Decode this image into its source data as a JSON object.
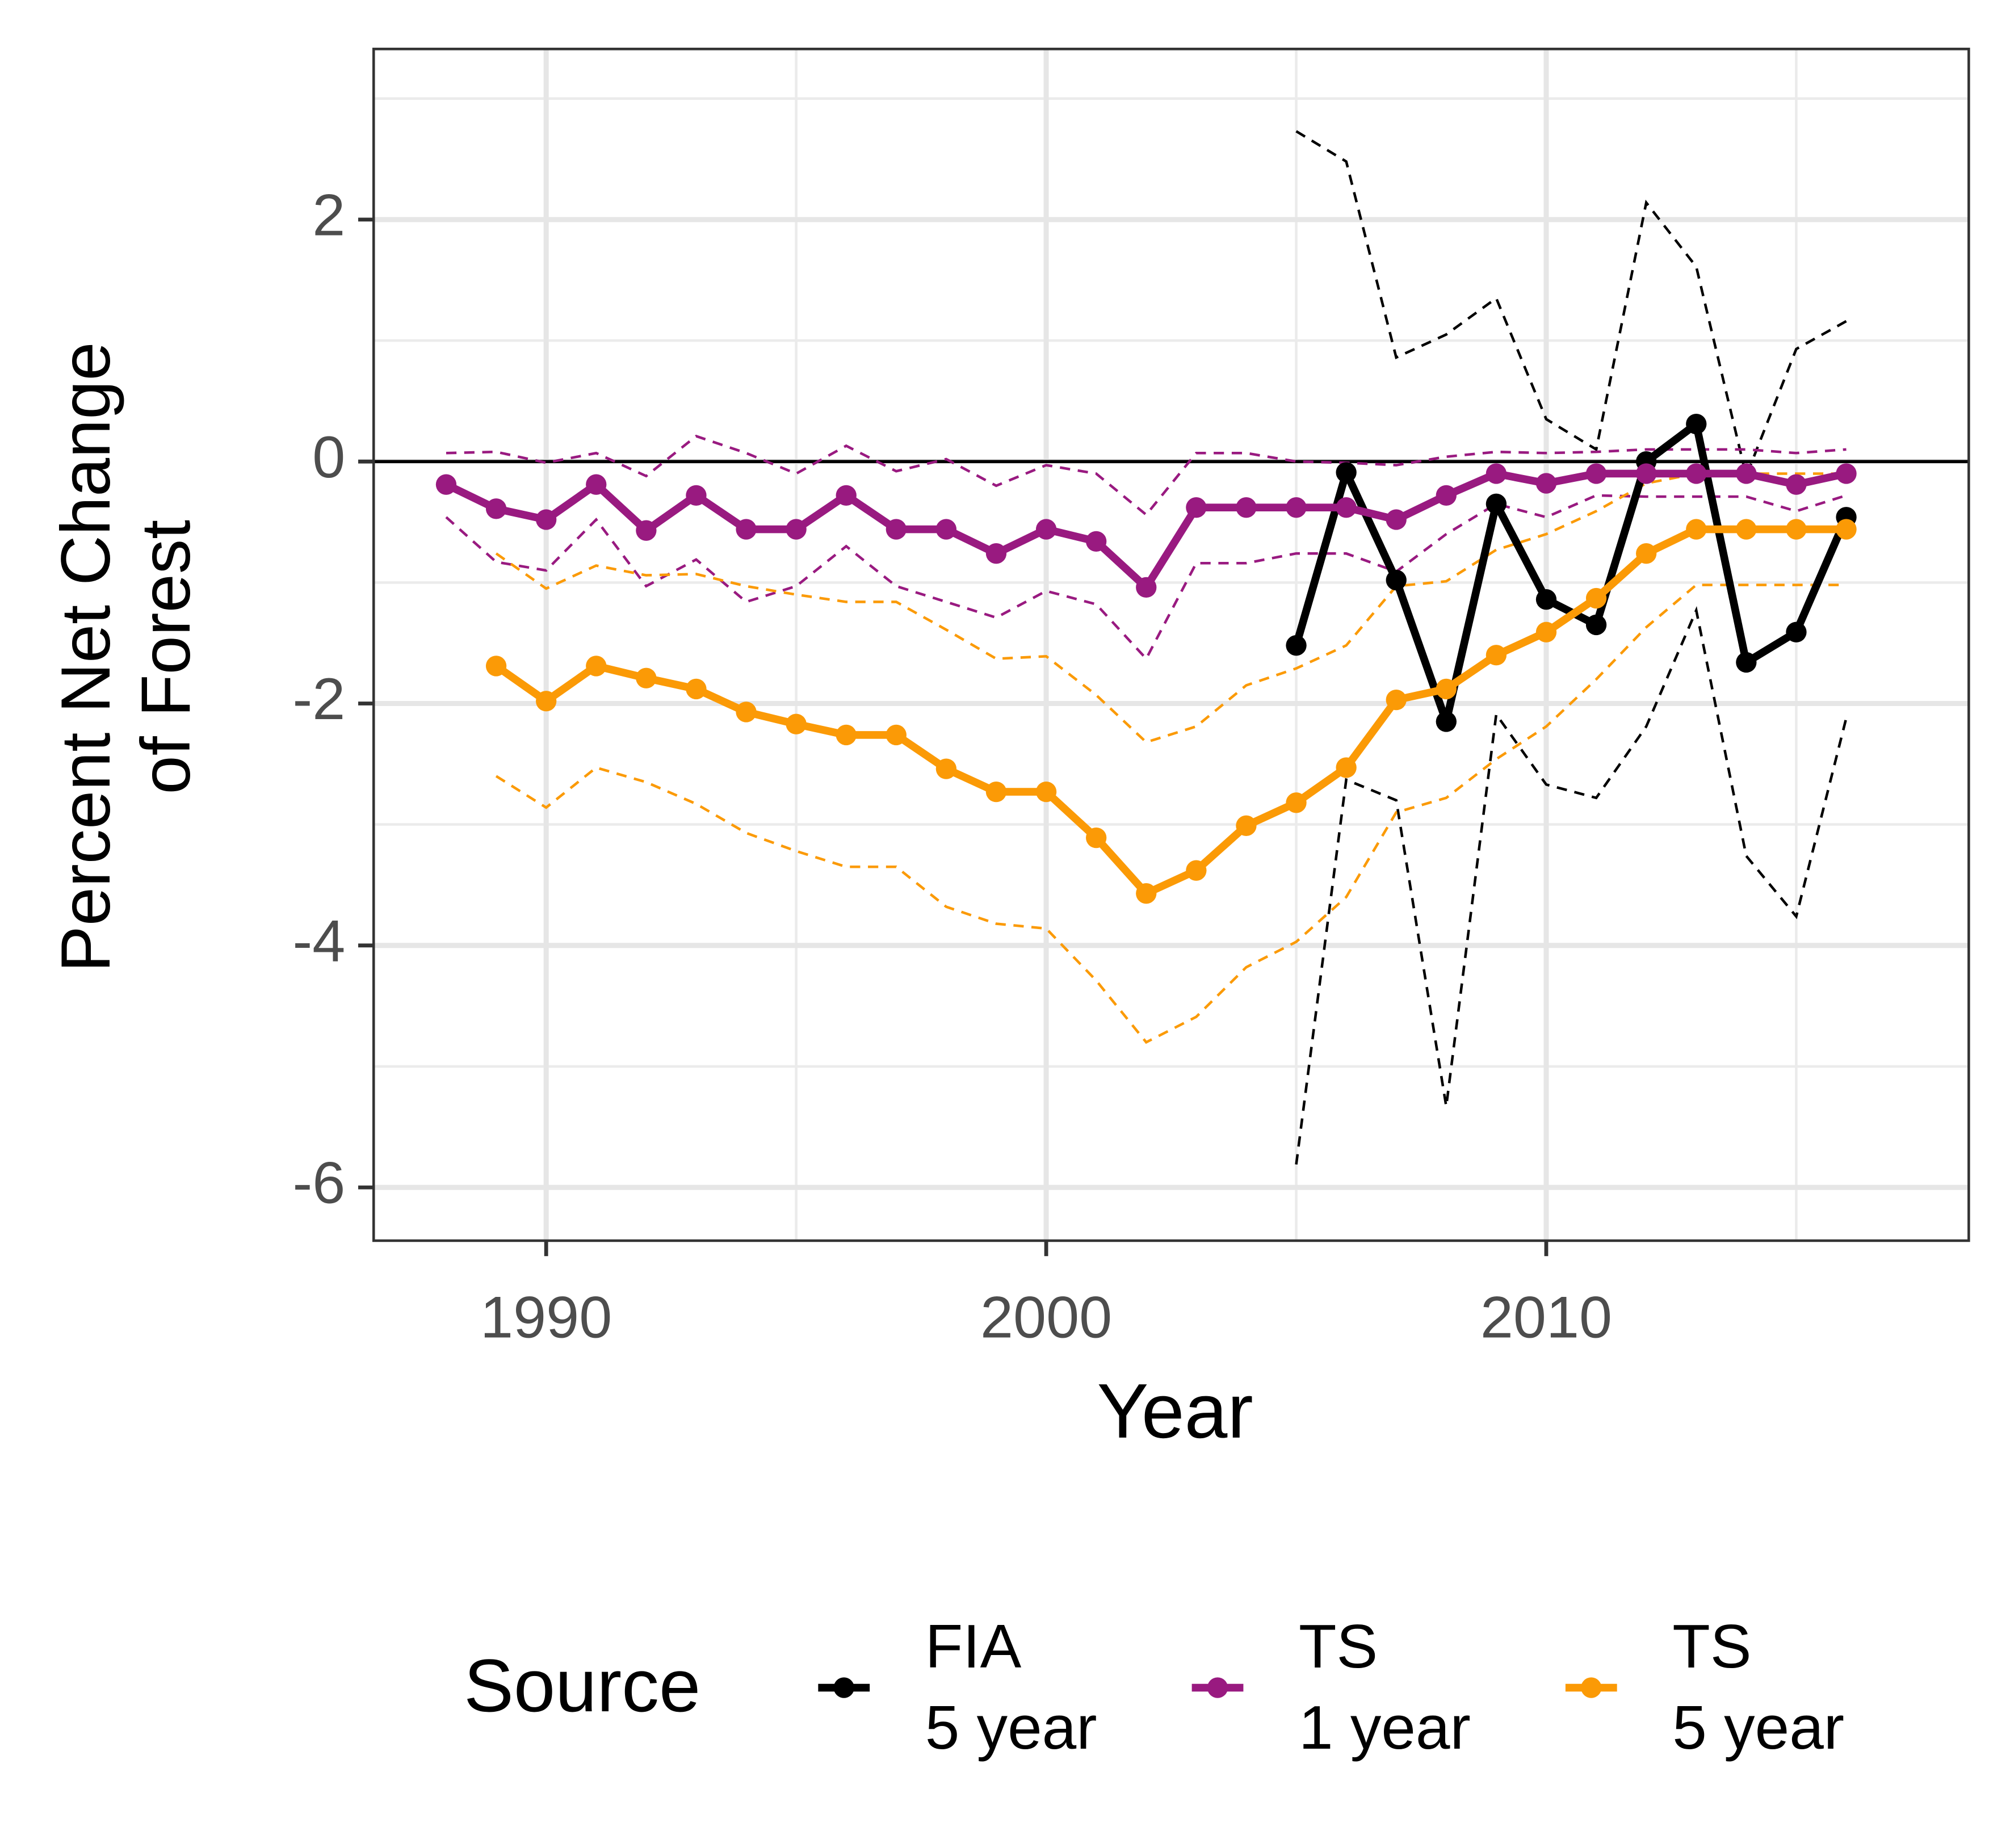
{
  "chart_data": {
    "type": "line",
    "x_label": "Year",
    "y_label": "Percent Net Change\nof Forest",
    "xlim": [
      1986.55,
      2018.45
    ],
    "xticks": [
      1990,
      2000,
      2010
    ],
    "ylim": [
      -6.44,
      3.41
    ],
    "yticks": [
      -6,
      -4,
      -2,
      0,
      2
    ],
    "grid": true,
    "hline": 0,
    "legend_title": "Source",
    "legend_position": "bottom",
    "series": [
      {
        "name": "FIA\n5 year",
        "color": "#000000",
        "x": [
          2005,
          2006,
          2007,
          2008,
          2009,
          2010,
          2011,
          2012,
          2013,
          2014,
          2015,
          2016
        ],
        "values": [
          -1.52,
          -0.09,
          -0.98,
          -2.15,
          -0.35,
          -1.14,
          -1.35,
          0,
          0.31,
          -1.66,
          -1.41,
          -0.46
        ],
        "lower": [
          -5.81,
          -2.63,
          -2.8,
          -5.33,
          -2.09,
          -2.67,
          -2.78,
          -2.19,
          -1.23,
          -3.26,
          -3.76,
          -2.12
        ],
        "upper": [
          2.73,
          2.48,
          0.86,
          1.05,
          1.35,
          0.35,
          0.1,
          2.14,
          1.61,
          -0.12,
          0.93,
          1.16
        ]
      },
      {
        "name": "TS\n1 year",
        "color": "#991a80",
        "x": [
          1988,
          1989,
          1990,
          1991,
          1992,
          1993,
          1994,
          1995,
          1996,
          1997,
          1998,
          1999,
          2000,
          2001,
          2002,
          2003,
          2004,
          2005,
          2006,
          2007,
          2008,
          2009,
          2010,
          2011,
          2012,
          2013,
          2014,
          2015,
          2016
        ],
        "values": [
          -0.19,
          -0.39,
          -0.48,
          -0.19,
          -0.57,
          -0.28,
          -0.56,
          -0.56,
          -0.28,
          -0.56,
          -0.56,
          -0.76,
          -0.56,
          -0.66,
          -1.04,
          -0.38,
          -0.38,
          -0.38,
          -0.38,
          -0.48,
          -0.28,
          -0.1,
          -0.18,
          -0.1,
          -0.1,
          -0.1,
          -0.1,
          -0.19,
          -0.1
        ],
        "lower": [
          -0.46,
          -0.83,
          -0.9,
          -0.48,
          -1.03,
          -0.81,
          -1.16,
          -1.03,
          -0.7,
          -1.03,
          -1.16,
          -1.29,
          -1.07,
          -1.18,
          -1.63,
          -0.84,
          -0.84,
          -0.76,
          -0.76,
          -0.91,
          -0.6,
          -0.35,
          -0.46,
          -0.28,
          -0.29,
          -0.29,
          -0.29,
          -0.41,
          -0.28
        ],
        "upper": [
          0.07,
          0.08,
          -0.01,
          0.07,
          -0.12,
          0.21,
          0.07,
          -0.1,
          0.13,
          -0.08,
          0.02,
          -0.2,
          -0.03,
          -0.1,
          -0.44,
          0.07,
          0.07,
          0,
          -0.01,
          -0.03,
          0.04,
          0.08,
          0.07,
          0.08,
          0.1,
          0.1,
          0.1,
          0.07,
          0.1
        ]
      },
      {
        "name": "TS\n5 year",
        "color": "#fb9a06",
        "x": [
          1989,
          1990,
          1991,
          1992,
          1993,
          1994,
          1995,
          1996,
          1997,
          1998,
          1999,
          2000,
          2001,
          2002,
          2003,
          2004,
          2005,
          2006,
          2007,
          2008,
          2009,
          2010,
          2011,
          2012,
          2013,
          2014,
          2015,
          2016
        ],
        "values": [
          -1.69,
          -1.98,
          -1.69,
          -1.79,
          -1.88,
          -2.07,
          -2.17,
          -2.26,
          -2.26,
          -2.54,
          -2.73,
          -2.73,
          -3.11,
          -3.57,
          -3.38,
          -3.01,
          -2.82,
          -2.53,
          -1.97,
          -1.88,
          -1.6,
          -1.41,
          -1.13,
          -0.76,
          -0.56,
          -0.56,
          -0.56,
          -0.56
        ],
        "lower": [
          -2.6,
          -2.86,
          -2.53,
          -2.65,
          -2.83,
          -3.07,
          -3.22,
          -3.35,
          -3.35,
          -3.68,
          -3.82,
          -3.86,
          -4.29,
          -4.8,
          -4.59,
          -4.18,
          -3.97,
          -3.6,
          -2.9,
          -2.78,
          -2.46,
          -2.19,
          -1.8,
          -1.37,
          -1.02,
          -1.02,
          -1.02,
          -1.02
        ],
        "upper": [
          -0.76,
          -1.05,
          -0.86,
          -0.94,
          -0.93,
          -1.03,
          -1.1,
          -1.16,
          -1.16,
          -1.39,
          -1.63,
          -1.61,
          -1.93,
          -2.32,
          -2.19,
          -1.85,
          -1.71,
          -1.52,
          -1.03,
          -0.99,
          -0.73,
          -0.6,
          -0.41,
          -0.18,
          -0.1,
          -0.1,
          -0.1,
          -0.1
        ]
      }
    ]
  }
}
